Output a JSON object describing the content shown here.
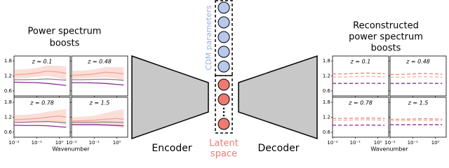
{
  "left": {
    "title_lines": [
      "Power spectrum",
      "boosts"
    ],
    "xlabel": "Wavenumber",
    "axes": {
      "x": [
        0.01,
        0.03,
        0.1,
        0.3,
        1,
        2
      ],
      "xlim": [
        0.01,
        3
      ],
      "xticks": [
        {
          "value": 0.01,
          "label": "10⁻²"
        },
        {
          "value": 0.1,
          "label": "10⁻¹"
        },
        {
          "value": 1,
          "label": "10⁰"
        }
      ],
      "ylim": [
        0.4,
        2.0
      ],
      "yticks": [
        0.6,
        1.2,
        1.8
      ]
    },
    "panels": [
      {
        "label": "z = 0.1",
        "series": [
          {
            "color": "#f4a090",
            "values": [
              1.25,
              1.27,
              1.32,
              1.4,
              1.35,
              1.3
            ],
            "lower": [
              1.1,
              1.12,
              1.16,
              1.2,
              1.12,
              1.05
            ],
            "upper": [
              1.45,
              1.47,
              1.52,
              1.62,
              1.6,
              1.58
            ]
          },
          {
            "color": "#888888",
            "values": [
              1.05,
              1.05,
              1.06,
              1.08,
              1.05,
              1.03
            ]
          },
          {
            "color": "#8a2a9a",
            "values": [
              0.95,
              0.94,
              0.93,
              0.9,
              0.85,
              0.82
            ]
          }
        ]
      },
      {
        "label": "z = 0.48",
        "series": [
          {
            "color": "#f4a090",
            "values": [
              1.22,
              1.24,
              1.28,
              1.35,
              1.32,
              1.28
            ],
            "lower": [
              1.08,
              1.1,
              1.12,
              1.15,
              1.1,
              1.02
            ],
            "upper": [
              1.4,
              1.42,
              1.46,
              1.55,
              1.55,
              1.55
            ]
          },
          {
            "color": "#888888",
            "values": [
              1.05,
              1.05,
              1.06,
              1.07,
              1.05,
              1.02
            ]
          },
          {
            "color": "#8a2a9a",
            "values": [
              0.93,
              0.93,
              0.92,
              0.9,
              0.86,
              0.84
            ]
          }
        ]
      },
      {
        "label": "z = 0.78",
        "series": [
          {
            "color": "#f4a090",
            "values": [
              1.1,
              1.12,
              1.15,
              1.2,
              1.25,
              1.2
            ],
            "lower": [
              0.95,
              0.96,
              0.98,
              1.0,
              0.95,
              0.88
            ],
            "upper": [
              1.28,
              1.3,
              1.34,
              1.42,
              1.5,
              1.52
            ]
          },
          {
            "color": "#888888",
            "values": [
              1.0,
              1.0,
              1.02,
              1.03,
              1.0,
              0.98
            ]
          },
          {
            "color": "#8a2a9a",
            "values": [
              0.88,
              0.87,
              0.87,
              0.86,
              0.82,
              0.8
            ]
          }
        ]
      },
      {
        "label": "z = 1.5",
        "series": [
          {
            "color": "#f4a090",
            "values": [
              1.05,
              1.06,
              1.08,
              1.12,
              1.15,
              1.12
            ],
            "lower": [
              0.9,
              0.9,
              0.9,
              0.88,
              0.82,
              0.75
            ],
            "upper": [
              1.2,
              1.22,
              1.26,
              1.36,
              1.48,
              1.52
            ]
          },
          {
            "color": "#888888",
            "values": [
              1.0,
              1.0,
              1.0,
              1.01,
              1.0,
              0.99
            ]
          },
          {
            "color": "#8a2a9a",
            "values": [
              0.9,
              0.9,
              0.9,
              0.89,
              0.87,
              0.86
            ]
          }
        ]
      }
    ]
  },
  "right": {
    "title_lines": [
      "Reconstructed",
      "power spectrum",
      "boosts"
    ],
    "xlabel": "Wavenumber",
    "axes": {
      "x": [
        0.01,
        0.03,
        0.1,
        0.3,
        1,
        2
      ],
      "xlim": [
        0.01,
        3
      ],
      "xticks": [
        {
          "value": 0.01,
          "label": "10⁻²"
        },
        {
          "value": 0.1,
          "label": "10⁻¹"
        },
        {
          "value": 1,
          "label": "10⁰"
        }
      ],
      "ylim": [
        0.4,
        2.0
      ],
      "yticks": [
        0.6,
        1.2,
        1.8
      ]
    },
    "panels": [
      {
        "label": "z = 0.1",
        "series": [
          {
            "color": "#f08070",
            "dashed": true,
            "values": [
              1.28,
              1.28,
              1.3,
              1.32,
              1.3,
              1.29
            ]
          },
          {
            "color": "#f4b0a0",
            "dashed": true,
            "values": [
              1.16,
              1.16,
              1.17,
              1.18,
              1.17,
              1.16
            ]
          },
          {
            "color": "#8a2a9a",
            "dashed": true,
            "values": [
              0.9,
              0.9,
              0.9,
              0.91,
              0.9,
              0.9
            ]
          }
        ]
      },
      {
        "label": "z = 0.48",
        "series": [
          {
            "color": "#f08070",
            "dashed": true,
            "values": [
              1.26,
              1.26,
              1.28,
              1.3,
              1.28,
              1.27
            ]
          },
          {
            "color": "#f4b0a0",
            "dashed": true,
            "values": [
              1.15,
              1.15,
              1.16,
              1.17,
              1.16,
              1.15
            ]
          },
          {
            "color": "#8a2a9a",
            "dashed": true,
            "values": [
              0.9,
              0.9,
              0.9,
              0.91,
              0.9,
              0.9
            ]
          }
        ]
      },
      {
        "label": "z = 0.78",
        "series": [
          {
            "color": "#f08070",
            "dashed": true,
            "values": [
              1.15,
              1.15,
              1.16,
              1.17,
              1.16,
              1.15
            ]
          },
          {
            "color": "#f4b0a0",
            "dashed": true,
            "values": [
              1.08,
              1.08,
              1.09,
              1.1,
              1.09,
              1.08
            ]
          },
          {
            "color": "#8a2a9a",
            "dashed": true,
            "values": [
              0.88,
              0.88,
              0.88,
              0.89,
              0.88,
              0.88
            ]
          }
        ]
      },
      {
        "label": "z = 1.5",
        "series": [
          {
            "color": "#f08070",
            "dashed": true,
            "values": [
              1.12,
              1.12,
              1.13,
              1.14,
              1.13,
              1.12
            ]
          },
          {
            "color": "#f4b0a0",
            "dashed": true,
            "values": [
              1.06,
              1.06,
              1.07,
              1.08,
              1.07,
              1.06
            ]
          },
          {
            "color": "#8a2a9a",
            "dashed": true,
            "values": [
              0.9,
              0.9,
              0.9,
              0.9,
              0.9,
              0.9
            ]
          }
        ]
      }
    ]
  },
  "encoder": "Encoder",
  "decoder": "Decoder",
  "cdm_parameters": "CDM parameters",
  "latent_space_lines": [
    "Latent",
    "space"
  ]
}
